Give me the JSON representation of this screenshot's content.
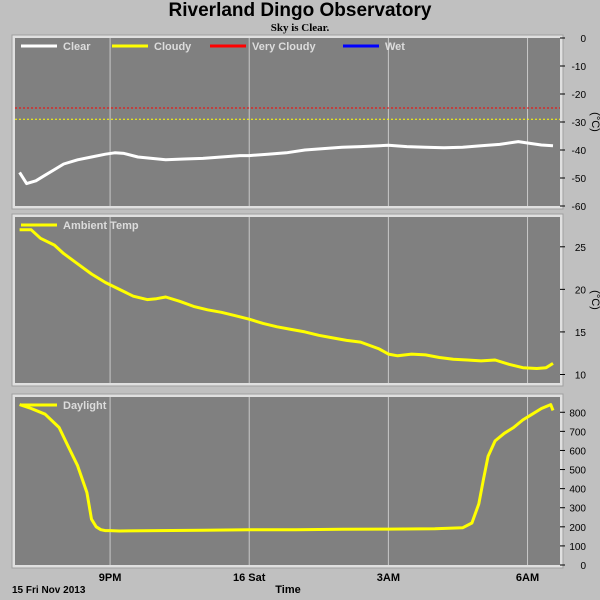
{
  "title": "Riverland Dingo Observatory",
  "subtitle": "Sky is Clear.",
  "footer": {
    "date_label": "15 Fri Nov 2013",
    "x_axis_label": "Time"
  },
  "colors": {
    "background": "#c0c0c0",
    "panel": "#808080",
    "grid": "#c8c8c8",
    "clear": "#ffffff",
    "cloudy": "#ffff00",
    "very_cloudy": "#ff0000",
    "wet": "#0000ff"
  },
  "chart_data": [
    {
      "type": "line",
      "panel": "sky",
      "ylabel": "(°C)",
      "ylim": [
        -60,
        0
      ],
      "yticks": [
        0,
        -10,
        -20,
        -30,
        -40,
        -50,
        -60
      ],
      "grid": true,
      "legend_position": "top-left",
      "legend": [
        {
          "name": "Clear",
          "color": "#ffffff"
        },
        {
          "name": "Cloudy",
          "color": "#ffff00"
        },
        {
          "name": "Very Cloudy",
          "color": "#ff0000"
        },
        {
          "name": "Wet",
          "color": "#0000ff"
        }
      ],
      "thresholds": [
        {
          "name": "Very Cloudy",
          "value": -25,
          "color": "#ff0000"
        },
        {
          "name": "Cloudy",
          "value": -29,
          "color": "#ffff00"
        }
      ],
      "series": [
        {
          "name": "Clear",
          "color": "#ffffff",
          "x": [
            19.05,
            19.2,
            19.4,
            19.6,
            19.8,
            20.0,
            20.3,
            20.6,
            20.9,
            21.1,
            21.3,
            21.6,
            21.9,
            22.2,
            22.6,
            23.0,
            23.4,
            23.8,
            24.0,
            24.4,
            24.8,
            25.2,
            25.6,
            26.0,
            26.4,
            26.8,
            27.0,
            27.4,
            27.8,
            28.2,
            28.6,
            29.0,
            29.4,
            29.8,
            30.0,
            30.3,
            30.55
          ],
          "values": [
            -48,
            -52,
            -51,
            -49,
            -47,
            -45,
            -43.5,
            -42.5,
            -41.5,
            -41,
            -41.2,
            -42.5,
            -43,
            -43.5,
            -43.2,
            -43,
            -42.5,
            -42,
            -42,
            -41.5,
            -41,
            -40,
            -39.5,
            -39,
            -38.8,
            -38.5,
            -38.3,
            -38.8,
            -39,
            -39.2,
            -39,
            -38.5,
            -38,
            -37,
            -37.5,
            -38.2,
            -38.5
          ]
        }
      ]
    },
    {
      "type": "line",
      "panel": "ambient",
      "ylabel": "(°C)",
      "ylim": [
        9,
        28.5
      ],
      "yticks": [
        25,
        20,
        15,
        10
      ],
      "grid": true,
      "legend_position": "top-left",
      "series": [
        {
          "name": "Ambient Temp",
          "color": "#ffff00",
          "x": [
            19.05,
            19.3,
            19.5,
            19.8,
            20.0,
            20.3,
            20.6,
            20.9,
            21.2,
            21.5,
            21.8,
            22.0,
            22.2,
            22.5,
            22.8,
            23.1,
            23.4,
            23.7,
            24.0,
            24.3,
            24.6,
            24.9,
            25.2,
            25.5,
            25.8,
            26.1,
            26.4,
            26.8,
            27.0,
            27.2,
            27.5,
            27.8,
            28.1,
            28.4,
            28.7,
            29.0,
            29.3,
            29.6,
            29.9,
            30.2,
            30.4,
            30.55
          ],
          "values": [
            27,
            27,
            26,
            25.2,
            24.2,
            23,
            21.8,
            20.8,
            20,
            19.2,
            18.8,
            18.9,
            19.1,
            18.6,
            18,
            17.6,
            17.3,
            16.9,
            16.5,
            16,
            15.6,
            15.3,
            15,
            14.6,
            14.3,
            14,
            13.8,
            13,
            12.4,
            12.2,
            12.4,
            12.3,
            12,
            11.8,
            11.7,
            11.6,
            11.7,
            11.2,
            10.8,
            10.7,
            10.8,
            11.3
          ]
        }
      ]
    },
    {
      "type": "line",
      "panel": "daylight",
      "ylim": [
        0,
        880
      ],
      "yticks": [
        0,
        100,
        200,
        300,
        400,
        500,
        600,
        700,
        800
      ],
      "grid": true,
      "legend_position": "top-left",
      "series": [
        {
          "name": "Daylight",
          "color": "#ffff00",
          "x": [
            19.05,
            19.3,
            19.6,
            19.9,
            20.1,
            20.3,
            20.5,
            20.6,
            20.7,
            20.8,
            20.9,
            21.0,
            21.2,
            22.0,
            23.0,
            24.0,
            25.0,
            26.0,
            27.0,
            28.0,
            28.6,
            28.8,
            28.95,
            29.05,
            29.15,
            29.3,
            29.5,
            29.7,
            29.9,
            30.1,
            30.3,
            30.5,
            30.55
          ],
          "values": [
            840,
            820,
            790,
            720,
            620,
            520,
            380,
            240,
            200,
            185,
            180,
            180,
            178,
            180,
            182,
            185,
            185,
            187,
            188,
            190,
            195,
            220,
            320,
            450,
            570,
            650,
            690,
            720,
            760,
            790,
            820,
            840,
            810
          ]
        }
      ]
    }
  ],
  "x_axis": {
    "ticks": [
      {
        "x": 21,
        "label": "9PM"
      },
      {
        "x": 24,
        "label": "16 Sat"
      },
      {
        "x": 27,
        "label": "3AM"
      },
      {
        "x": 30,
        "label": "6AM"
      }
    ],
    "range": [
      18.95,
      30.7
    ]
  }
}
